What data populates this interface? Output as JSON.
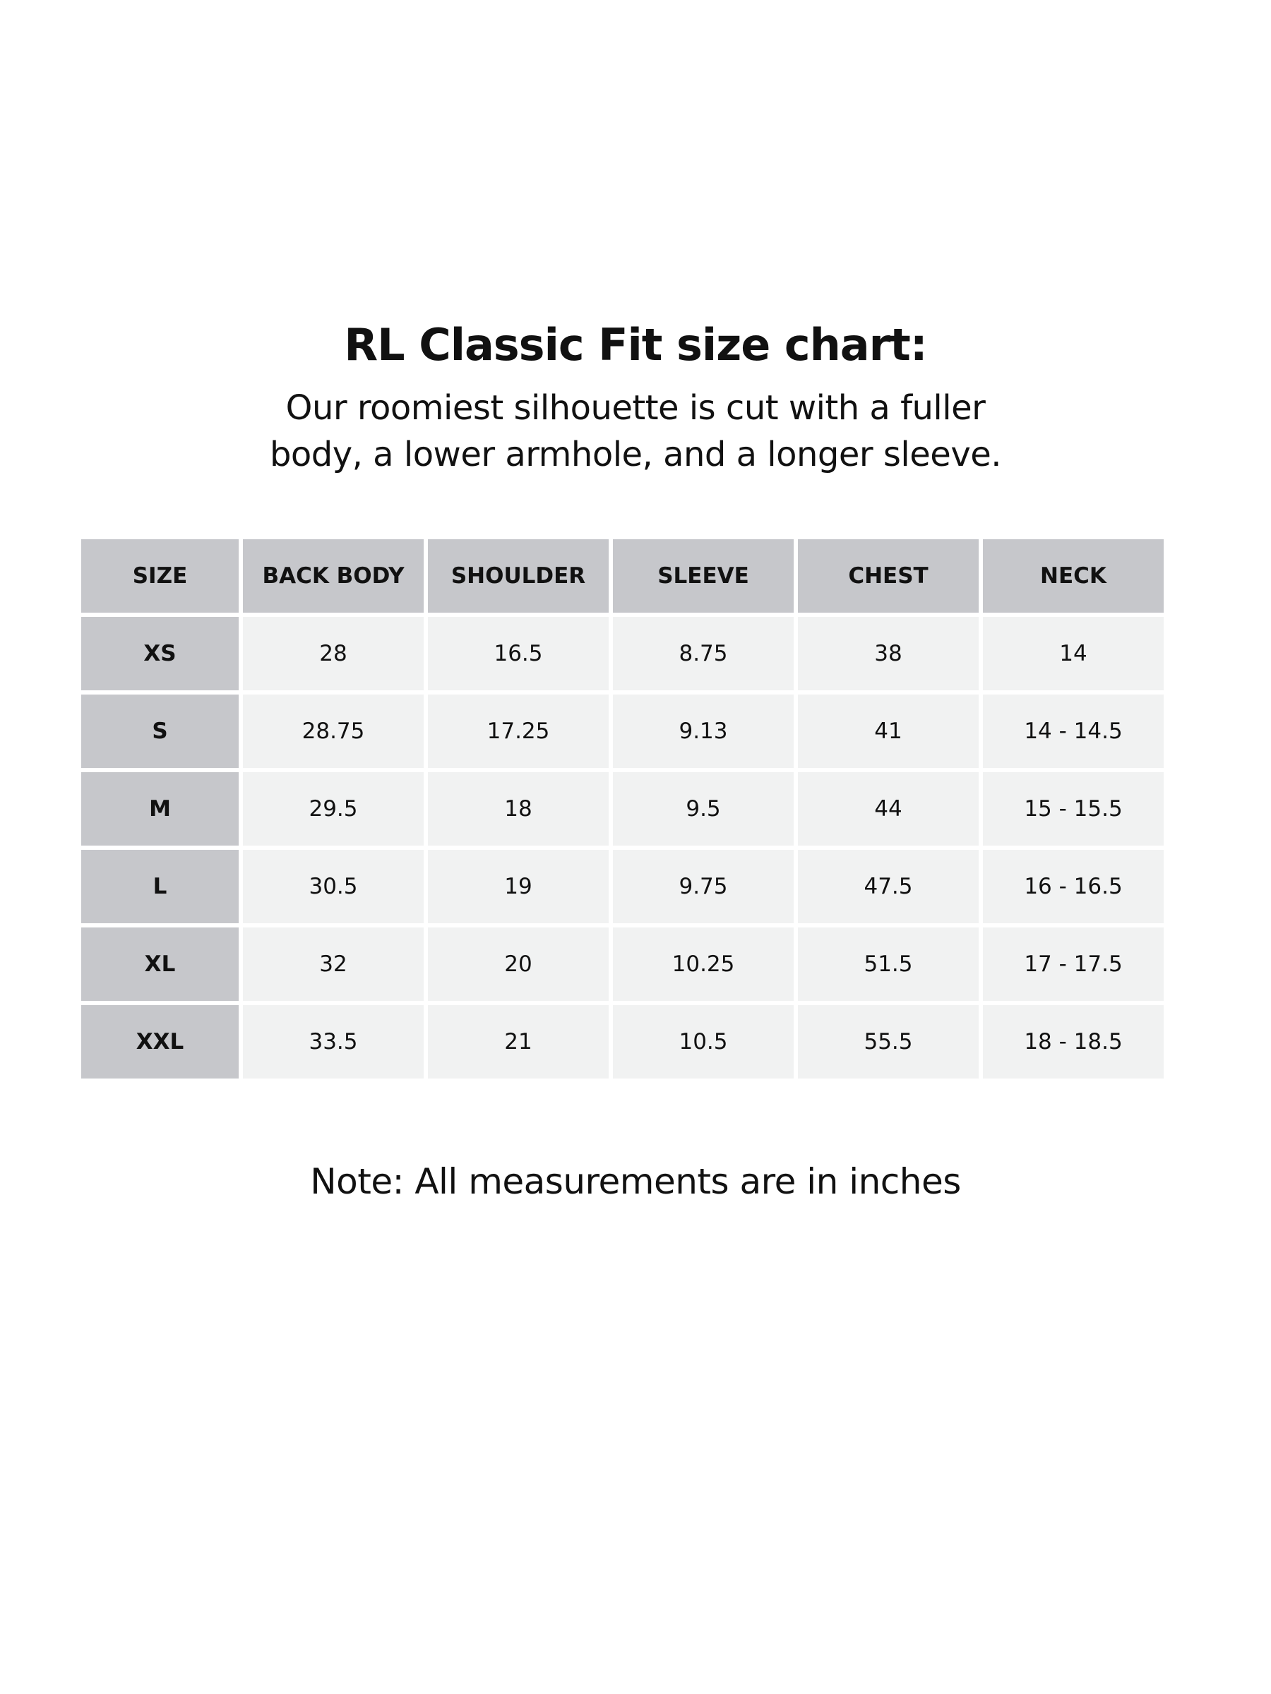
{
  "title": "RL Classic Fit size chart:",
  "subtitle_lines": [
    "Our roomiest silhouette is cut with a fuller",
    "body, a lower armhole, and a longer sleeve."
  ],
  "table": {
    "headers": [
      "SIZE",
      "BACK BODY",
      "SHOULDER",
      "SLEEVE",
      "CHEST",
      "NECK"
    ],
    "rows": [
      [
        "XS",
        "28",
        "16.5",
        "8.75",
        "38",
        "14"
      ],
      [
        "S",
        "28.75",
        "17.25",
        "9.13",
        "41",
        "14 - 14.5"
      ],
      [
        "M",
        "29.5",
        "18",
        "9.5",
        "44",
        "15 - 15.5"
      ],
      [
        "L",
        "30.5",
        "19",
        "9.75",
        "47.5",
        "16 - 16.5"
      ],
      [
        "XL",
        "32",
        "20",
        "10.25",
        "51.5",
        "17 - 17.5"
      ],
      [
        "XXL",
        "33.5",
        "21",
        "10.5",
        "55.5",
        "18 - 18.5"
      ]
    ]
  },
  "note": "Note: All measurements are in inches",
  "colors": {
    "header_bg": "#c6c7cb",
    "cell_bg": "#f1f2f2"
  }
}
